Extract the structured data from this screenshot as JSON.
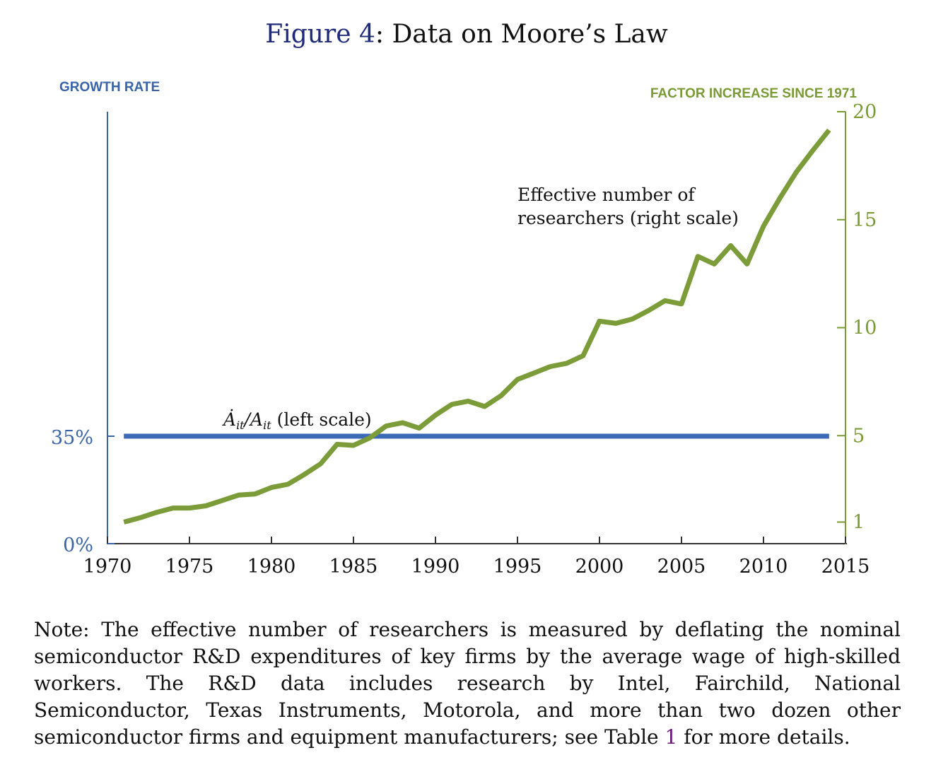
{
  "figure": {
    "label": "Figure 4",
    "separator": ":",
    "title_text": " Data on Moore’s Law"
  },
  "colors": {
    "left_axis": "#3a64a8",
    "right_axis": "#7a9a34",
    "growth_line": "#3a6ab5",
    "researchers_line": "#7c9c3a",
    "text": "#111111"
  },
  "chart_data": {
    "type": "line",
    "title": "Figure 4: Data on Moore’s Law",
    "left_axis": {
      "label": "GROWTH RATE",
      "ticks": [
        {
          "value": 0,
          "label": "0%"
        },
        {
          "value": 35,
          "label": "35%"
        }
      ],
      "range": [
        0,
        35
      ]
    },
    "right_axis": {
      "label": "FACTOR INCREASE SINCE 1971",
      "ticks": [
        1,
        5,
        10,
        15,
        20
      ],
      "range": [
        0,
        20
      ]
    },
    "x_axis": {
      "range": [
        1970,
        2015
      ],
      "ticks": [
        1970,
        1975,
        1980,
        1985,
        1990,
        1995,
        2000,
        2005,
        2010,
        2015
      ]
    },
    "series": [
      {
        "name": "growth_rate",
        "scale": "left",
        "annotation_main": "Ȧ",
        "annotation_sub1": "it",
        "annotation_slash": "/A",
        "annotation_sub2": "it",
        "annotation_rest": " (left scale)",
        "x": [
          1971,
          2014
        ],
        "y": [
          35,
          35
        ]
      },
      {
        "name": "effective_researchers",
        "scale": "right",
        "annotation_line1": "Effective number of",
        "annotation_line2": "researchers (right scale)",
        "x": [
          1971,
          1972,
          1973,
          1974,
          1975,
          1976,
          1977,
          1978,
          1979,
          1980,
          1981,
          1982,
          1983,
          1984,
          1985,
          1986,
          1987,
          1988,
          1989,
          1990,
          1991,
          1992,
          1993,
          1994,
          1995,
          1996,
          1997,
          1998,
          1999,
          2000,
          2001,
          2002,
          2003,
          2004,
          2005,
          2006,
          2007,
          2008,
          2009,
          2010,
          2011,
          2012,
          2013,
          2014
        ],
        "y": [
          1.0,
          1.2,
          1.45,
          1.65,
          1.65,
          1.75,
          2.0,
          2.25,
          2.3,
          2.6,
          2.75,
          3.2,
          3.7,
          4.6,
          4.55,
          4.9,
          5.45,
          5.6,
          5.35,
          5.95,
          6.45,
          6.6,
          6.35,
          6.85,
          7.6,
          7.9,
          8.2,
          8.35,
          8.7,
          10.3,
          10.2,
          10.4,
          10.8,
          11.25,
          11.1,
          13.3,
          12.95,
          13.8,
          12.95,
          14.7,
          16.0,
          17.2,
          18.2,
          19.15
        ]
      }
    ]
  },
  "note": {
    "text_before": "Note:  The effective number of researchers is measured by deflating the nominal semiconductor R&D expenditures of key firms by the average wage of high-skilled workers.  The R&D data includes research by Intel, Fairchild, National Semiconductor, Texas Instruments, Motorola, and more than two dozen other semiconductor firms and equipment manufacturers; see Table ",
    "table_ref": "1",
    "text_after": " for more details."
  }
}
